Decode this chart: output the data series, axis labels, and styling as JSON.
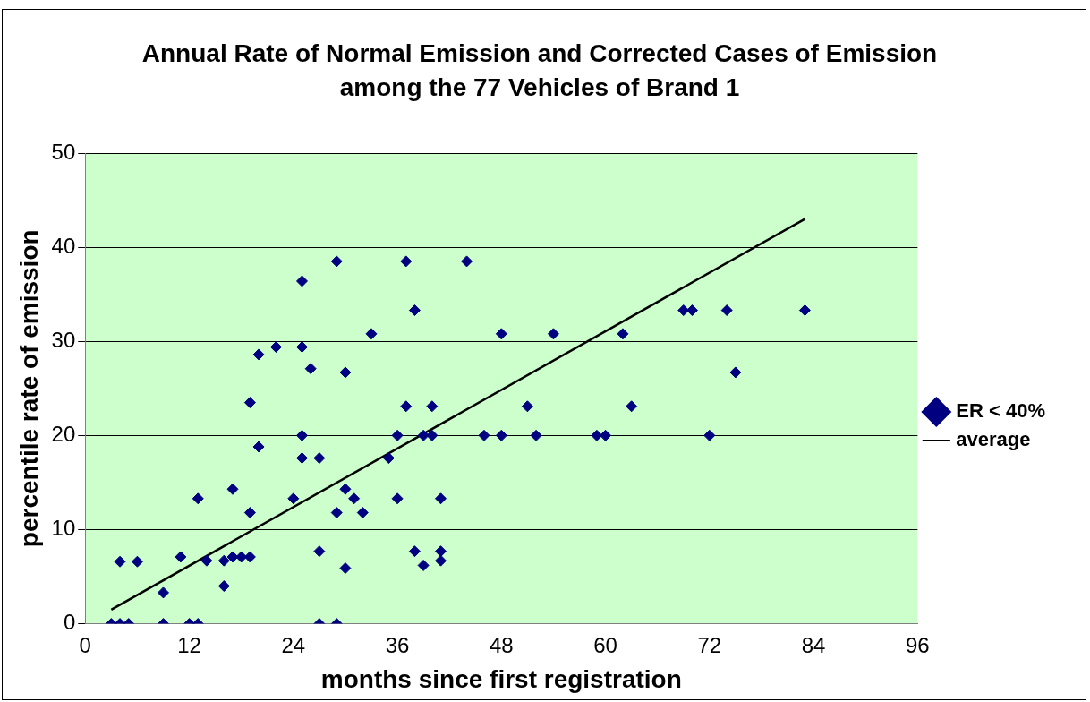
{
  "chart_data": {
    "type": "scatter",
    "title": "Annual Rate of Normal Emission and Corrected Cases of Emission among the 77 Vehicles of Brand 1",
    "xlabel": "months since first registration",
    "ylabel": "percentile rate of emission",
    "xlim": [
      0,
      96
    ],
    "xticks": [
      0,
      12,
      24,
      36,
      48,
      60,
      72,
      84,
      96
    ],
    "ylim": [
      0,
      50
    ],
    "yticks": [
      0,
      10,
      20,
      30,
      40,
      50
    ],
    "grid": "y",
    "legend": "right",
    "marker": "diamond",
    "series": [
      {
        "name": "ER < 40%",
        "color": "#000080",
        "x": [
          3,
          4,
          5,
          4,
          6,
          9,
          9,
          11,
          12,
          13,
          13,
          14,
          16,
          16,
          17,
          17,
          18,
          19,
          19,
          19,
          20,
          20,
          22,
          24,
          25,
          25,
          25,
          25,
          26,
          27,
          27,
          27,
          29,
          29,
          29,
          30,
          30,
          30,
          31,
          32,
          33,
          35,
          36,
          36,
          37,
          37,
          38,
          38,
          39,
          39,
          40,
          40,
          41,
          41,
          41,
          44,
          46,
          48,
          48,
          51,
          52,
          54,
          59,
          60,
          62,
          63,
          69,
          70,
          72,
          74,
          75,
          83
        ],
        "values": [
          0,
          0,
          0,
          6.6,
          6.6,
          3.3,
          0,
          7.1,
          0,
          0,
          13.3,
          6.7,
          4,
          6.7,
          14.3,
          7.1,
          7.1,
          7.1,
          11.8,
          23.5,
          18.8,
          28.6,
          29.4,
          13.3,
          36.4,
          29.4,
          17.6,
          20,
          27.1,
          17.6,
          7.7,
          0,
          38.5,
          11.8,
          0,
          26.7,
          14.3,
          5.9,
          13.3,
          11.8,
          30.8,
          17.6,
          20,
          13.3,
          38.5,
          23.1,
          33.3,
          7.7,
          6.2,
          20,
          20,
          23.1,
          13.3,
          7.7,
          6.7,
          38.5,
          20,
          20,
          30.8,
          23.1,
          20,
          30.8,
          20,
          20,
          30.8,
          23.1,
          33.3,
          33.3,
          20,
          33.3,
          26.7,
          33.3
        ]
      },
      {
        "name": "average",
        "type": "line",
        "color": "#000000",
        "marker": "none",
        "x": [
          3,
          83
        ],
        "values": [
          1.5,
          43
        ]
      }
    ]
  }
}
